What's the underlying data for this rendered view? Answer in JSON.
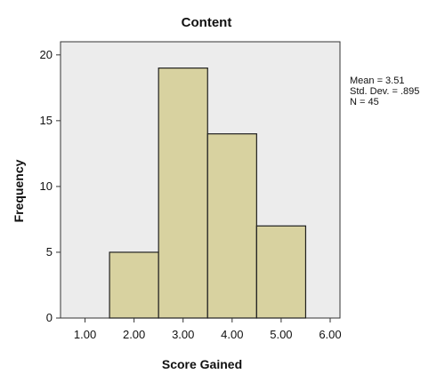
{
  "chart_data": {
    "type": "bar",
    "title": "Content",
    "xlabel": "Score Gained",
    "ylabel": "Frequency",
    "xlim": [
      0.5,
      6.2
    ],
    "ylim": [
      0,
      21
    ],
    "bin_width": 1.0,
    "bins": [
      {
        "center": 2.0,
        "value": 5
      },
      {
        "center": 3.0,
        "value": 19
      },
      {
        "center": 4.0,
        "value": 14
      },
      {
        "center": 5.0,
        "value": 7
      }
    ],
    "x_ticks": [
      1.0,
      2.0,
      3.0,
      4.0,
      5.0,
      6.0
    ],
    "x_tick_labels": [
      "1.00",
      "2.00",
      "3.00",
      "4.00",
      "5.00",
      "6.00"
    ],
    "y_ticks": [
      0,
      5,
      10,
      15,
      20
    ],
    "y_tick_labels": [
      "0",
      "5",
      "10",
      "15",
      "20"
    ],
    "stats": {
      "mean": "Mean = 3.51",
      "std_dev": "Std. Dev. = .895",
      "n": "N = 45"
    },
    "colors": {
      "plot_background": "#ececec",
      "bar_fill": "#d8d2a0",
      "bar_stroke": "#202020",
      "axis": "#333333"
    }
  }
}
